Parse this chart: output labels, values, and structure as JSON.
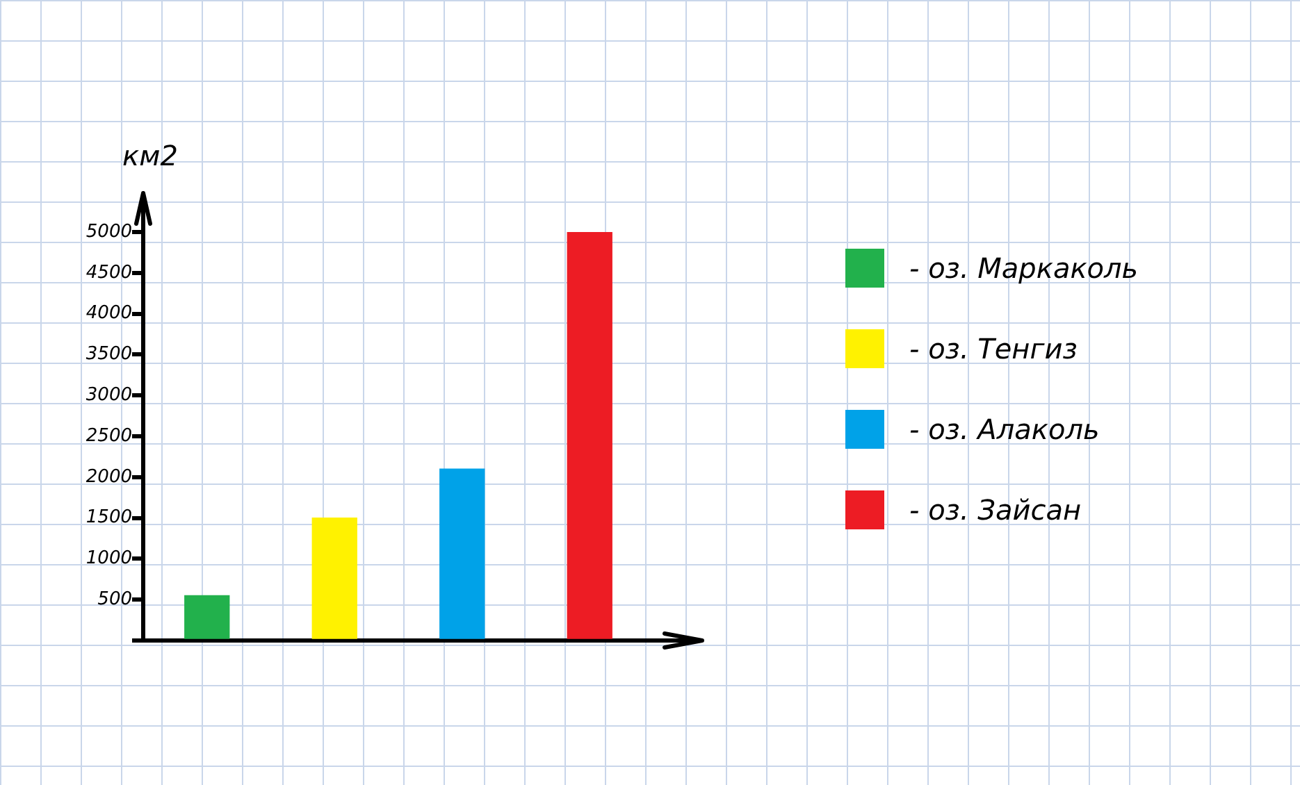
{
  "chart_data": {
    "type": "bar",
    "ylabel": "км2",
    "categories": [
      null,
      null,
      null,
      null
    ],
    "series": [
      {
        "name": "- оз. Маркаколь",
        "color": "#22b14c",
        "values": [
          550,
          null,
          null,
          null
        ]
      },
      {
        "name": "- оз. Тенгиз",
        "color": "#fff200",
        "values": [
          null,
          1500,
          null,
          null
        ]
      },
      {
        "name": "- оз. Алаколь",
        "color": "#00a2e8",
        "values": [
          null,
          null,
          2100,
          null
        ]
      },
      {
        "name": "- оз. Зайсан",
        "color": "#ed1c24",
        "values": [
          null,
          null,
          null,
          5000
        ]
      }
    ],
    "ylim": [
      0,
      5000
    ],
    "yticks": [
      {
        "value": 0,
        "label": null
      },
      500,
      1000,
      1500,
      2000,
      2500,
      3000,
      3500,
      4000,
      4500,
      5000
    ],
    "grid": false,
    "legend": "right",
    "tick_labels": "y"
  }
}
